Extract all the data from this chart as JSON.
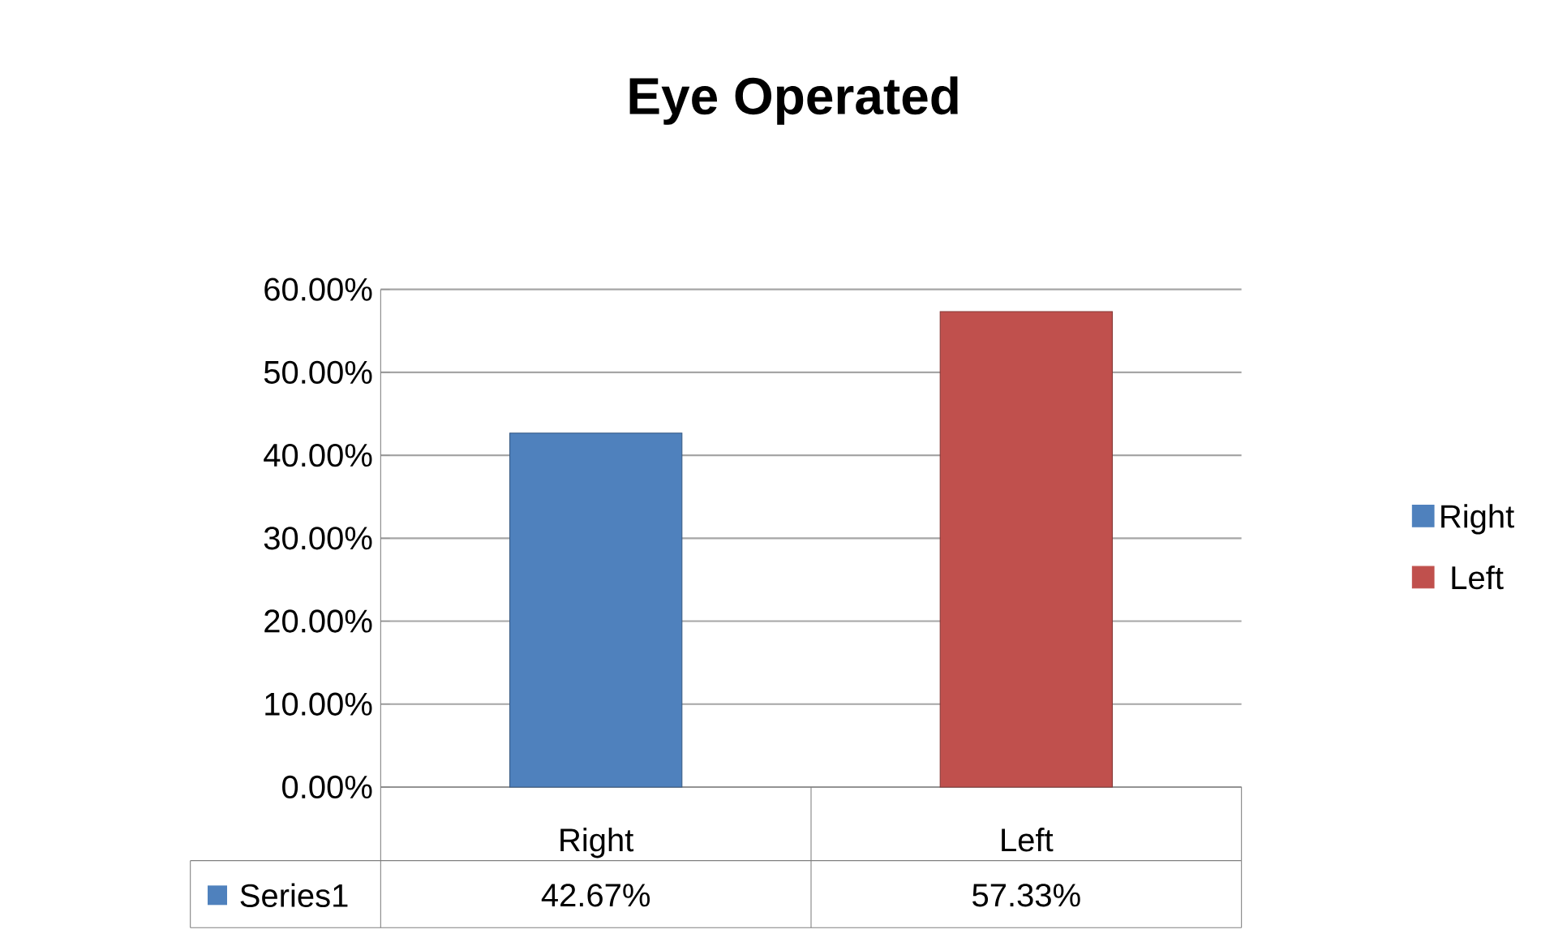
{
  "chart_data": {
    "type": "bar",
    "title": "Eye Operated",
    "categories": [
      "Right",
      "Left"
    ],
    "series": [
      {
        "name": "Series1",
        "color": "#4f81bd",
        "colors": [
          "#4f81bd",
          "#c0504d"
        ],
        "values": [
          42.67,
          57.33
        ],
        "value_labels": [
          "42.67%",
          "57.33%"
        ]
      }
    ],
    "ylim": [
      0,
      60
    ],
    "yticks": [
      {
        "value": 0,
        "label": "0.00%"
      },
      {
        "value": 10,
        "label": "10.00%"
      },
      {
        "value": 20,
        "label": "20.00%"
      },
      {
        "value": 30,
        "label": "30.00%"
      },
      {
        "value": 40,
        "label": "40.00%"
      },
      {
        "value": 50,
        "label": "50.00%"
      },
      {
        "value": 60,
        "label": "60.00%"
      }
    ],
    "grid": "y",
    "legend": "bottom left"
  }
}
